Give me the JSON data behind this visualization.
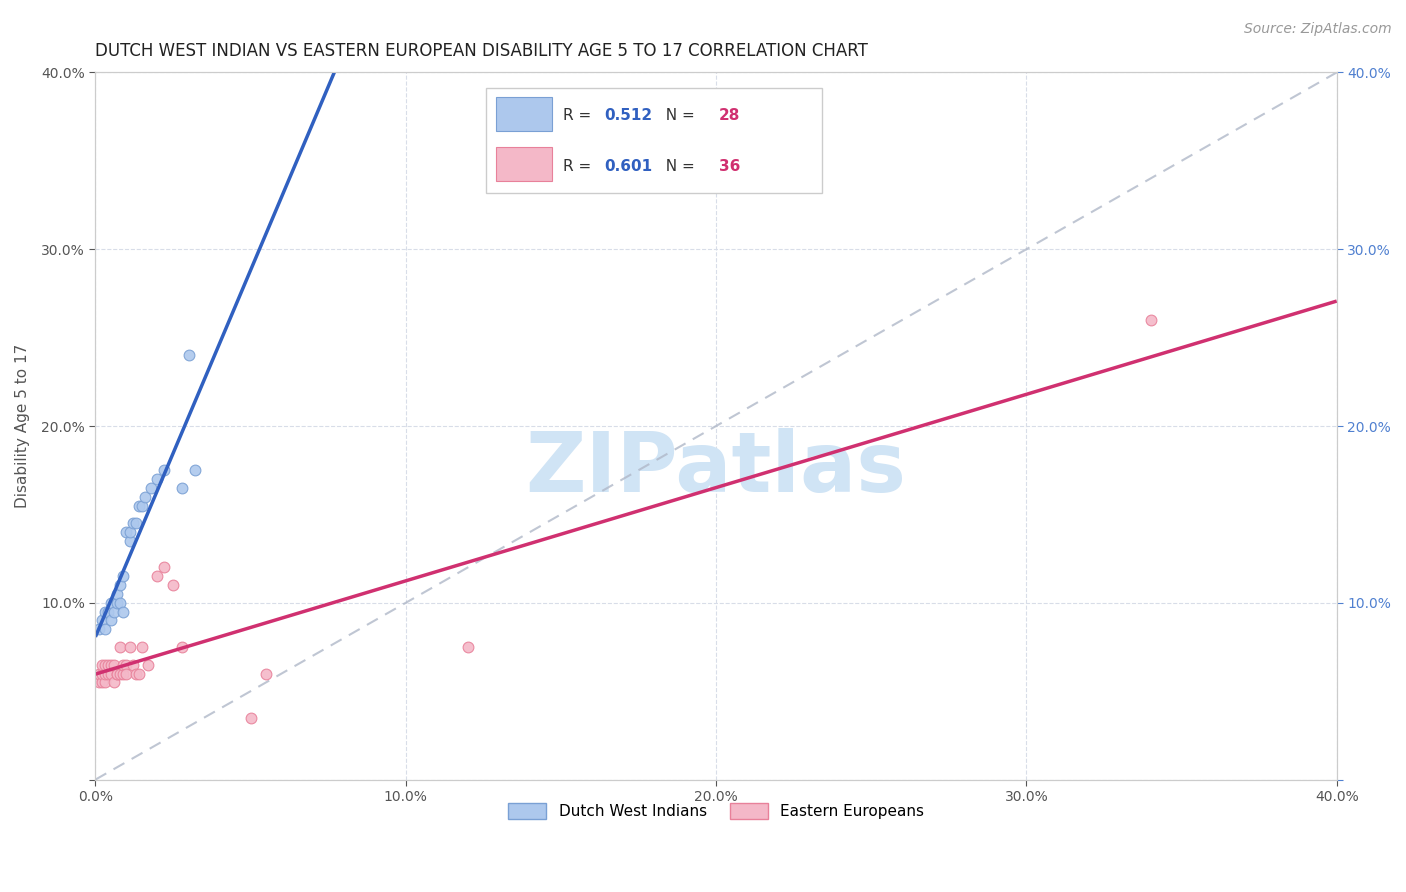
{
  "title": "DUTCH WEST INDIAN VS EASTERN EUROPEAN DISABILITY AGE 5 TO 17 CORRELATION CHART",
  "source": "Source: ZipAtlas.com",
  "xlabel": "",
  "ylabel": "Disability Age 5 to 17",
  "xlim": [
    0.0,
    0.4
  ],
  "ylim": [
    0.0,
    0.4
  ],
  "xticks": [
    0.0,
    0.1,
    0.2,
    0.3,
    0.4
  ],
  "yticks": [
    0.0,
    0.1,
    0.2,
    0.3,
    0.4
  ],
  "series1_label": "Dutch West Indians",
  "series1_R": "0.512",
  "series1_N": "28",
  "series1_color": "#adc8ed",
  "series1_edge": "#7aa0d4",
  "series2_label": "Eastern Europeans",
  "series2_R": "0.601",
  "series2_N": "36",
  "series2_color": "#f4b8c8",
  "series2_edge": "#e8819a",
  "regression1_color": "#3060c0",
  "regression2_color": "#d03070",
  "diagonal_color": "#b0b8c8",
  "grid_color": "#d8dde8",
  "background_color": "#ffffff",
  "series1_x": [
    0.001,
    0.002,
    0.003,
    0.003,
    0.004,
    0.005,
    0.005,
    0.006,
    0.007,
    0.007,
    0.008,
    0.008,
    0.009,
    0.009,
    0.01,
    0.011,
    0.011,
    0.012,
    0.013,
    0.014,
    0.015,
    0.016,
    0.018,
    0.02,
    0.022,
    0.028,
    0.03,
    0.032
  ],
  "series1_y": [
    0.085,
    0.09,
    0.085,
    0.095,
    0.095,
    0.09,
    0.1,
    0.095,
    0.1,
    0.105,
    0.1,
    0.11,
    0.095,
    0.115,
    0.14,
    0.135,
    0.14,
    0.145,
    0.145,
    0.155,
    0.155,
    0.16,
    0.165,
    0.17,
    0.175,
    0.165,
    0.24,
    0.175
  ],
  "series2_x": [
    0.001,
    0.001,
    0.002,
    0.002,
    0.002,
    0.003,
    0.003,
    0.003,
    0.004,
    0.004,
    0.005,
    0.005,
    0.006,
    0.006,
    0.007,
    0.007,
    0.008,
    0.008,
    0.009,
    0.009,
    0.01,
    0.01,
    0.011,
    0.012,
    0.013,
    0.014,
    0.015,
    0.017,
    0.02,
    0.022,
    0.025,
    0.028,
    0.05,
    0.055,
    0.12,
    0.34
  ],
  "series2_y": [
    0.055,
    0.06,
    0.055,
    0.06,
    0.065,
    0.055,
    0.06,
    0.065,
    0.06,
    0.065,
    0.06,
    0.065,
    0.055,
    0.065,
    0.06,
    0.06,
    0.06,
    0.075,
    0.06,
    0.065,
    0.065,
    0.06,
    0.075,
    0.065,
    0.06,
    0.06,
    0.075,
    0.065,
    0.115,
    0.12,
    0.11,
    0.075,
    0.035,
    0.06,
    0.075,
    0.26
  ],
  "regression1_xrange": [
    0.0,
    0.17
  ],
  "regression2_xrange": [
    0.0,
    0.4
  ],
  "title_fontsize": 12,
  "axis_label_fontsize": 11,
  "tick_fontsize": 10,
  "legend_fontsize": 11,
  "source_fontsize": 10,
  "marker_size": 60,
  "watermark": "ZIPatlas",
  "watermark_fontsize": 60,
  "watermark_color": "#d0e4f5"
}
